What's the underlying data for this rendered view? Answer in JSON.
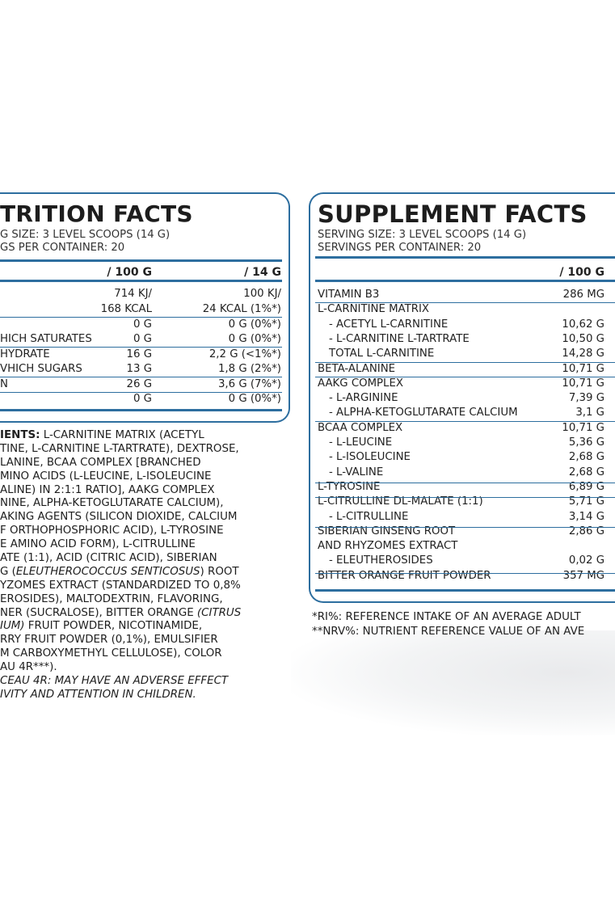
{
  "nutrition": {
    "title": "TRITION FACTS",
    "serving_size": "G SIZE: 3 LEVEL SCOOPS (14 G)",
    "servings_per_container": "GS PER CONTAINER: 20",
    "col_100g": "/ 100 G",
    "col_14g": "/ 14 G",
    "rows": [
      {
        "label": "",
        "v100": "714 KJ/",
        "v14": "100 KJ/"
      },
      {
        "label": "",
        "v100": "168 KCAL",
        "v14": "24 KCAL (1%*)"
      },
      {
        "label": "",
        "v100": "0 G",
        "v14": "0 G (0%*)"
      },
      {
        "label": "HICH SATURATES",
        "v100": "0 G",
        "v14": "0 G (0%*)"
      },
      {
        "label": "HYDRATE",
        "v100": "16 G",
        "v14": "2,2 G (<1%*)"
      },
      {
        "label": "VHICH SUGARS",
        "v100": "13 G",
        "v14": "1,8 G (2%*)"
      },
      {
        "label": "N",
        "v100": "26 G",
        "v14": "3,6 G (7%*)"
      },
      {
        "label": "",
        "v100": "0 G",
        "v14": "0 G (0%*)"
      }
    ]
  },
  "ingredients": [
    [
      {
        "t": "IENTS:",
        "b": true
      },
      {
        "t": " L-CARNITINE MATRIX (ACETYL"
      }
    ],
    [
      {
        "t": "TINE, L-CARNITINE L-TARTRATE), DEXTROSE,"
      }
    ],
    [
      {
        "t": "LANINE, BCAA COMPLEX [BRANCHED"
      }
    ],
    [
      {
        "t": "MINO ACIDS (L-LEUCINE, L-ISOLEUCINE"
      }
    ],
    [
      {
        "t": "ALINE) IN 2:1:1 RATIO], AAKG COMPLEX"
      }
    ],
    [
      {
        "t": "NINE, ALPHA-KETOGLUTARATE CALCIUM),"
      }
    ],
    [
      {
        "t": "AKING AGENTS (SILICON DIOXIDE, CALCIUM"
      }
    ],
    [
      {
        "t": "F ORTHOPHOSPHORIC ACID), L-TYROSINE"
      }
    ],
    [
      {
        "t": "E AMINO ACID FORM), L-CITRULLINE"
      }
    ],
    [
      {
        "t": "ATE (1:1), ACID (CITRIC ACID), SIBERIAN"
      }
    ],
    [
      {
        "t": "G ("
      },
      {
        "t": "ELEUTHEROCOCCUS SENTICOSUS",
        "i": true
      },
      {
        "t": ") ROOT"
      }
    ],
    [
      {
        "t": "YZOMES EXTRACT (STANDARDIZED TO 0,8%"
      }
    ],
    [
      {
        "t": "EROSIDES), MALTODEXTRIN, FLAVORING,"
      }
    ],
    [
      {
        "t": "NER (SUCRALOSE), BITTER ORANGE "
      },
      {
        "t": "(CITRUS",
        "i": true
      }
    ],
    [
      {
        "t": "IUM)",
        "i": true
      },
      {
        "t": " FRUIT POWDER, NICOTINAMIDE,"
      }
    ],
    [
      {
        "t": "RRY FRUIT POWDER (0,1%), EMULSIFIER"
      }
    ],
    [
      {
        "t": "M CARBOXYMETHYL CELLULOSE), COLOR"
      }
    ],
    [
      {
        "t": "AU 4R***)."
      }
    ],
    [
      {
        "t": "CEAU 4R: MAY HAVE AN ADVERSE EFFECT",
        "i": true
      }
    ],
    [
      {
        "t": "IVITY AND ATTENTION IN CHILDREN.",
        "i": true
      }
    ]
  ],
  "supplement": {
    "title": "SUPPLEMENT FACTS",
    "serving_size": "SERVING SIZE: 3 LEVEL SCOOPS (14 G)",
    "servings_per_container": "SERVINGS PER CONTAINER: 20",
    "col_100g": "/ 100 G",
    "rows": [
      {
        "label": "VITAMIN B3",
        "v": "286 MG"
      },
      {
        "label": "L-CARNITINE MATRIX",
        "v": ""
      },
      {
        "label": "  - ACETYL L-CARNITINE",
        "v": "10,62 G"
      },
      {
        "label": "  - L-CARNITINE L-TARTRATE",
        "v": "10,50 G"
      },
      {
        "label": "  TOTAL L-CARNITINE",
        "v": "14,28 G"
      },
      {
        "label": "BETA-ALANINE",
        "v": "10,71 G"
      },
      {
        "label": "AAKG COMPLEX",
        "v": "10,71 G"
      },
      {
        "label": "  - L-ARGININE",
        "v": "7,39 G"
      },
      {
        "label": "  - ALPHA-KETOGLUTARATE CALCIUM",
        "v": "3,1 G"
      },
      {
        "label": "BCAA COMPLEX",
        "v": "10,71 G"
      },
      {
        "label": "  - L-LEUCINE",
        "v": "5,36 G"
      },
      {
        "label": "  - L-ISOLEUCINE",
        "v": "2,68 G"
      },
      {
        "label": "  - L-VALINE",
        "v": "2,68 G"
      },
      {
        "label": "L-TYROSINE",
        "v": "6,89 G"
      },
      {
        "label": "L-CITRULLINE DL-MALATE (1:1)",
        "v": "5,71 G"
      },
      {
        "label": "  - L-CITRULLINE",
        "v": "3,14 G"
      },
      {
        "label": "SIBERIAN GINSENG ROOT",
        "v": "2,86 G"
      },
      {
        "label": "AND RHYZOMES EXTRACT",
        "v": ""
      },
      {
        "label": "  - ELEUTHEROSIDES",
        "v": "0,02 G"
      },
      {
        "label": "BITTER ORANGE FRUIT POWDER",
        "v": "357 MG"
      }
    ]
  },
  "footnotes": [
    "*RI%: REFERENCE INTAKE OF AN AVERAGE ADULT",
    "**NRV%: NUTRIENT REFERENCE VALUE OF AN AVE"
  ],
  "colors": {
    "border": "#2d6e9f",
    "text": "#222222"
  }
}
